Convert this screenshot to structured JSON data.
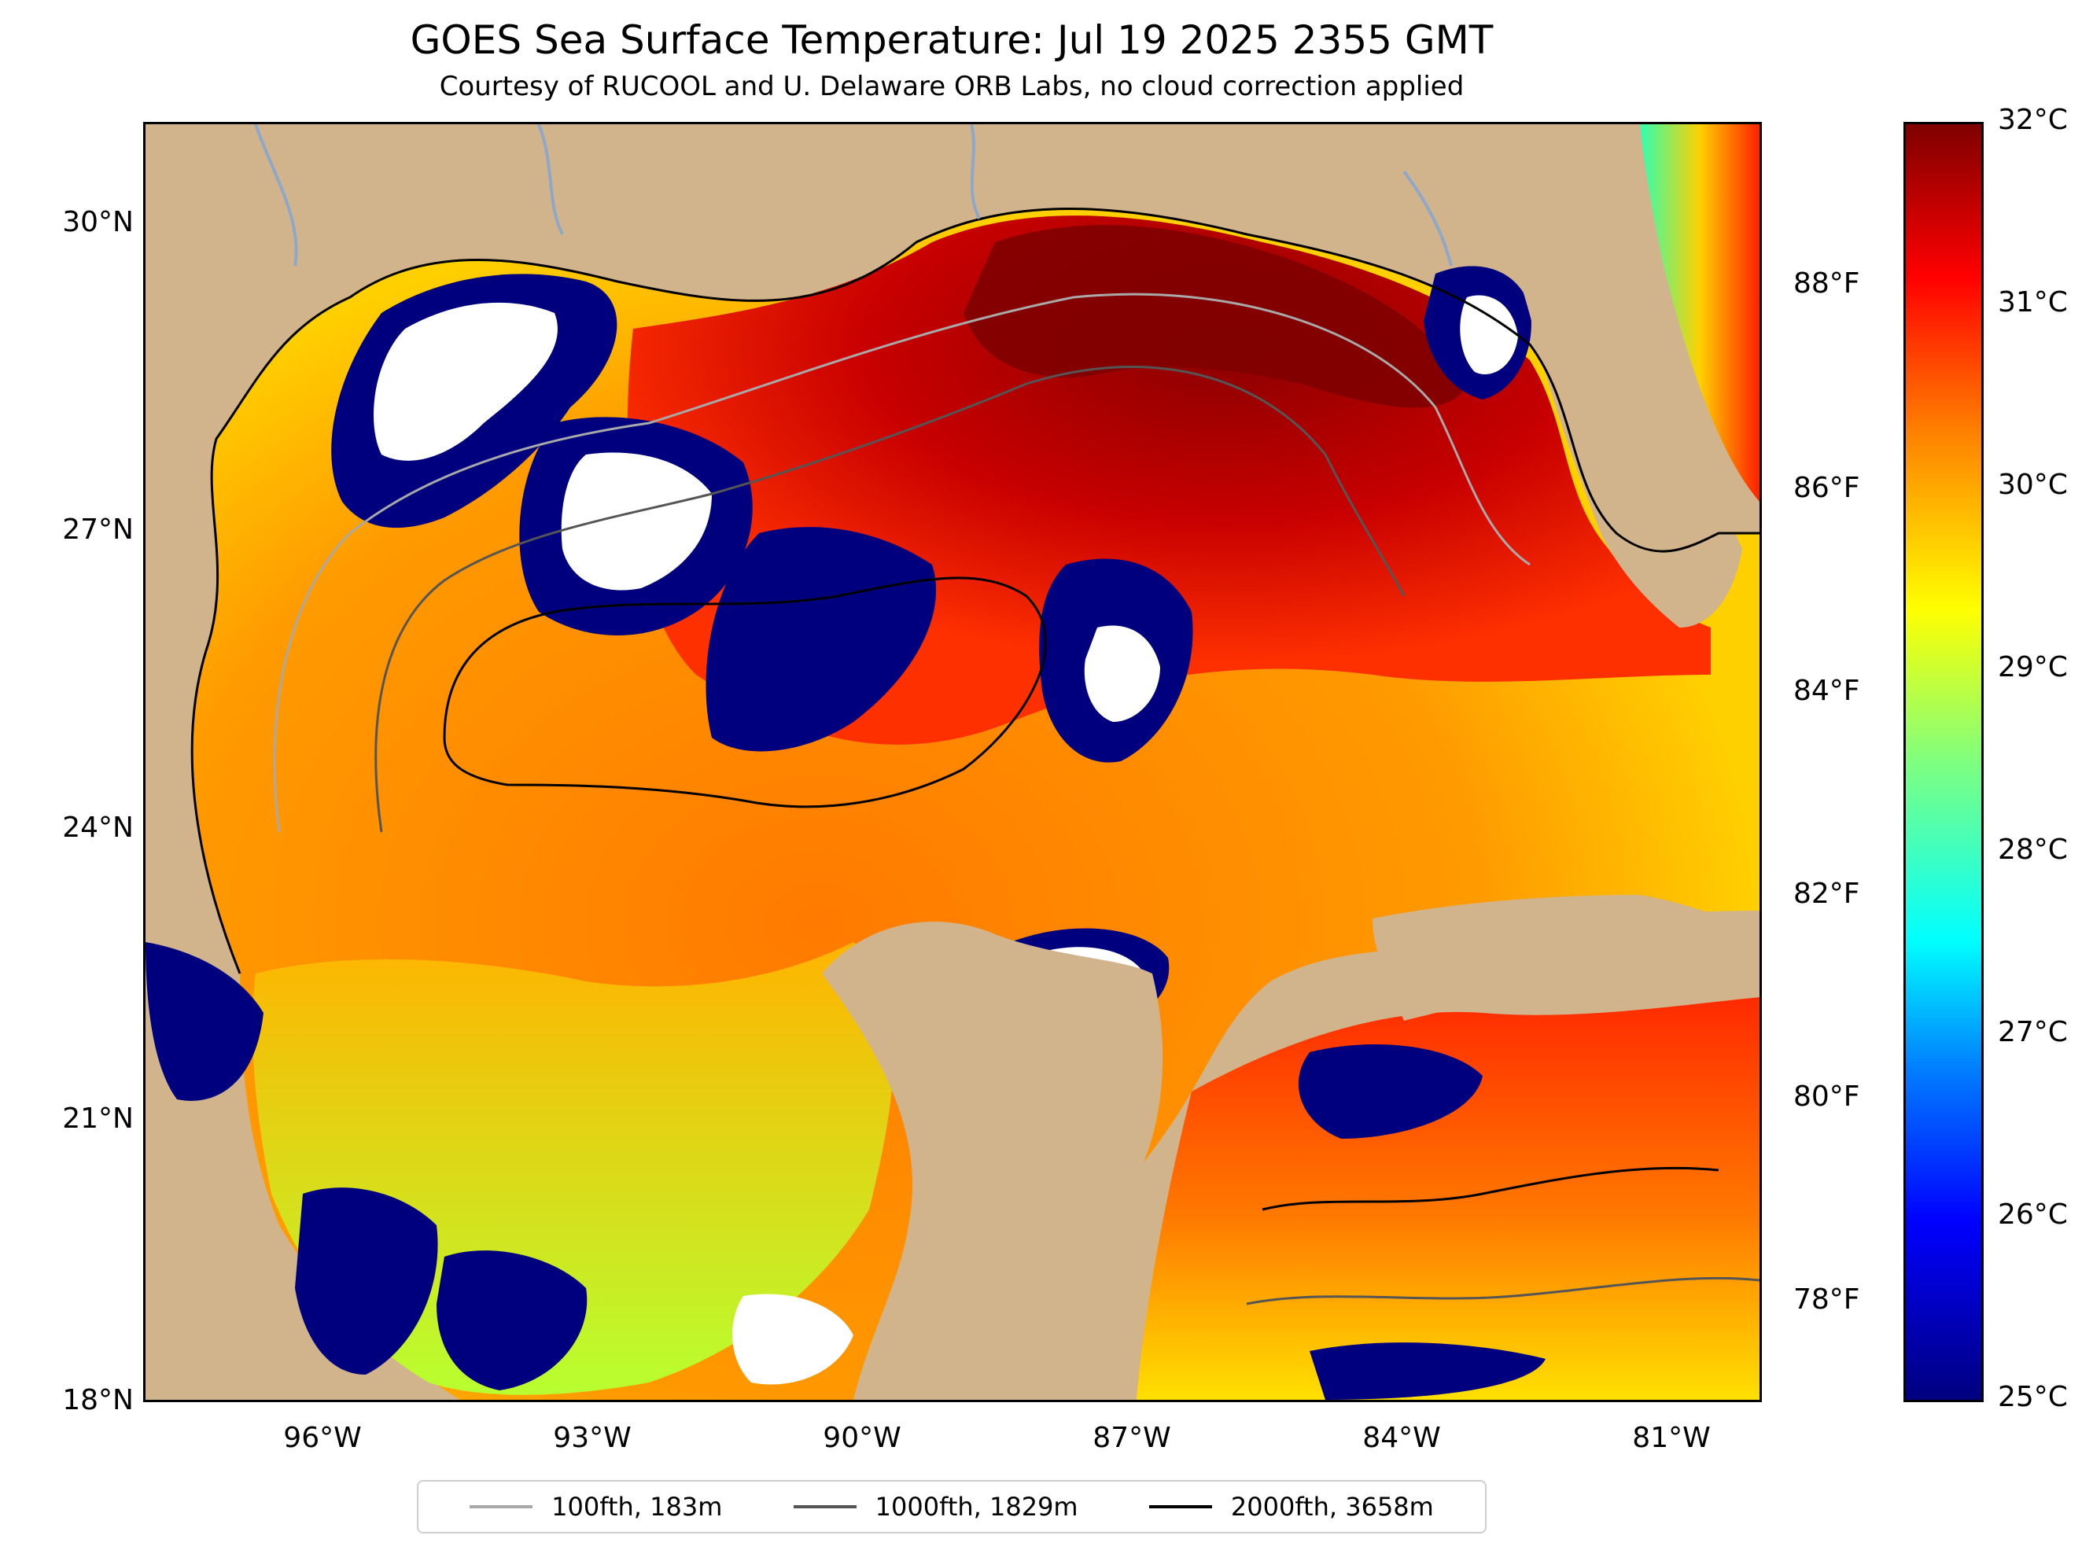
{
  "title": "GOES Sea Surface Temperature: Jul 19 2025 2355 GMT",
  "subtitle": "Courtesy of RUCOOL and U. Delaware ORB Labs, no cloud correction applied",
  "axes": {
    "lat_labels": [
      "30°N",
      "27°N",
      "24°N",
      "21°N",
      "18°N"
    ],
    "lon_labels": [
      "96°W",
      "93°W",
      "90°W",
      "87°W",
      "84°W",
      "81°W"
    ],
    "fahrenheit_labels": [
      "88°F",
      "86°F",
      "84°F",
      "82°F",
      "80°F",
      "78°F"
    ],
    "celsius_labels": [
      "32°C",
      "31°C",
      "30°C",
      "29°C",
      "28°C",
      "27°C",
      "26°C",
      "25°C"
    ]
  },
  "colorbar": {
    "min_c": 25,
    "max_c": 32,
    "colormap": "jet"
  },
  "legend": [
    {
      "label": "100fth, 183m",
      "color": "#a9a9a9"
    },
    {
      "label": "1000fth, 1829m",
      "color": "#555555"
    },
    {
      "label": "2000fth, 3658m",
      "color": "#000000"
    }
  ],
  "colors": {
    "land": "#d2b48c",
    "cloud": "#ffffff",
    "cold": "#00007f",
    "hot": "#7f0000"
  }
}
